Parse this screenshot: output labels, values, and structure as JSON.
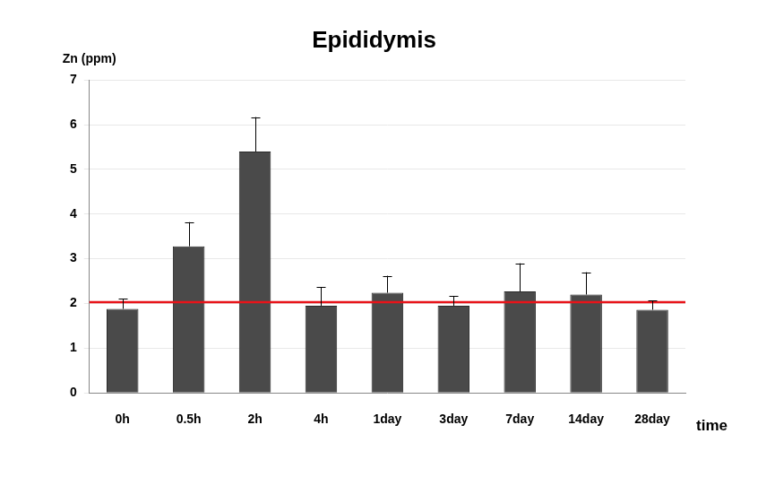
{
  "chart_data": {
    "type": "bar",
    "title": "Epididymis",
    "ylabel": "Zn (ppm)",
    "xlabel": "time",
    "categories": [
      "0h",
      "0.5h",
      "2h",
      "4h",
      "1day",
      "3day",
      "7day",
      "14day",
      "28day"
    ],
    "values": [
      1.88,
      3.28,
      5.4,
      1.95,
      2.24,
      1.95,
      2.27,
      2.2,
      1.86
    ],
    "errors": [
      0.23,
      0.54,
      0.77,
      0.42,
      0.38,
      0.22,
      0.63,
      0.5,
      0.2
    ],
    "reference_line": 2.03,
    "color": "#4a4a4a",
    "ylim": [
      0,
      7
    ],
    "yticks": [
      0,
      1,
      2,
      3,
      4,
      5,
      6,
      7
    ],
    "grid": true
  }
}
